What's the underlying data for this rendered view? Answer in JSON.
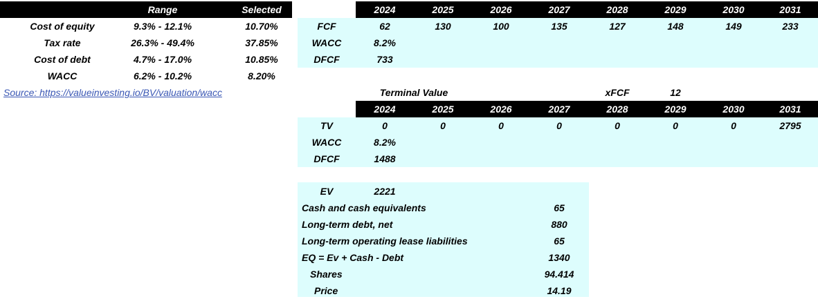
{
  "wacc_table": {
    "headers": {
      "range": "Range",
      "selected": "Selected"
    },
    "rows": [
      {
        "label": "Cost of equity",
        "range": "9.3% - 12.1%",
        "selected": "10.70%"
      },
      {
        "label": "Tax rate",
        "range": "26.3% - 49.4%",
        "selected": "37.85%"
      },
      {
        "label": "Cost of debt",
        "range": "4.7% - 17.0%",
        "selected": "10.85%"
      },
      {
        "label": "WACC",
        "range": "6.2% - 10.2%",
        "selected": "8.20%"
      }
    ],
    "source": "Source: https://valueinvesting.io/BV/valuation/wacc"
  },
  "fcf_table": {
    "years": [
      "2024",
      "2025",
      "2026",
      "2027",
      "2028",
      "2029",
      "2030",
      "2031"
    ],
    "fcf_label": "FCF",
    "fcf": [
      "62",
      "130",
      "100",
      "135",
      "127",
      "148",
      "149",
      "233"
    ],
    "wacc_label": "WACC",
    "wacc": "8.2%",
    "dfcf_label": "DFCF",
    "dfcf": "733"
  },
  "terminal": {
    "title": "Terminal Value",
    "xfcf_label": "xFCF",
    "xfcf": "12",
    "years": [
      "2024",
      "2025",
      "2026",
      "2027",
      "2028",
      "2029",
      "2030",
      "2031"
    ],
    "tv_label": "TV",
    "tv": [
      "0",
      "0",
      "0",
      "0",
      "0",
      "0",
      "0",
      "2795"
    ],
    "wacc_label": "WACC",
    "wacc": "8.2%",
    "dfcf_label": "DFCF",
    "dfcf": "1488"
  },
  "valuation": {
    "ev_label": "EV",
    "ev": "2221",
    "rows": [
      {
        "label": "Cash and cash equivalents",
        "value": "65"
      },
      {
        "label": "Long-term debt, net",
        "value": "880"
      },
      {
        "label": "Long-term operating lease liabilities",
        "value": "65"
      },
      {
        "label": "EQ = Ev + Cash - Debt",
        "value": "1340"
      }
    ],
    "shares_label": "Shares",
    "shares": "94.414",
    "price_label": "Price",
    "price": "14.19"
  }
}
